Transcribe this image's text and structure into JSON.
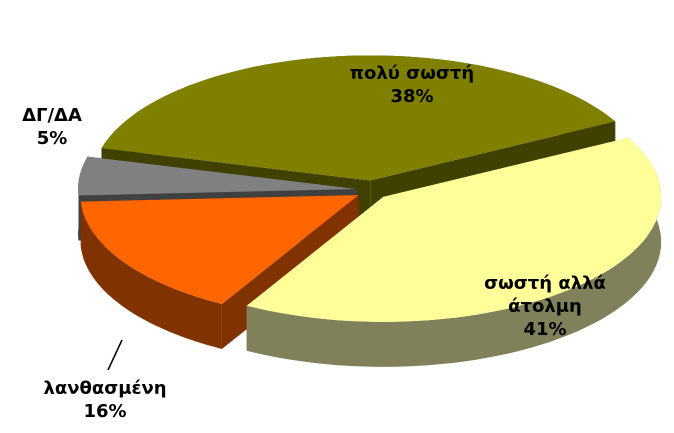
{
  "chart_data": {
    "type": "pie",
    "categories": [
      "πολύ σωστή",
      "σωστή αλλά άτολμη",
      "λανθασμένη",
      "ΔΓ/ΔΑ"
    ],
    "values": [
      38,
      41,
      16,
      5
    ],
    "value_labels": [
      "38%",
      "41%",
      "16%",
      "5%"
    ],
    "colors": [
      "#808000",
      "#ffff99",
      "#ff6600",
      "#808080"
    ],
    "side_colors": [
      "#404000",
      "#80805a",
      "#803300",
      "#404040"
    ]
  }
}
